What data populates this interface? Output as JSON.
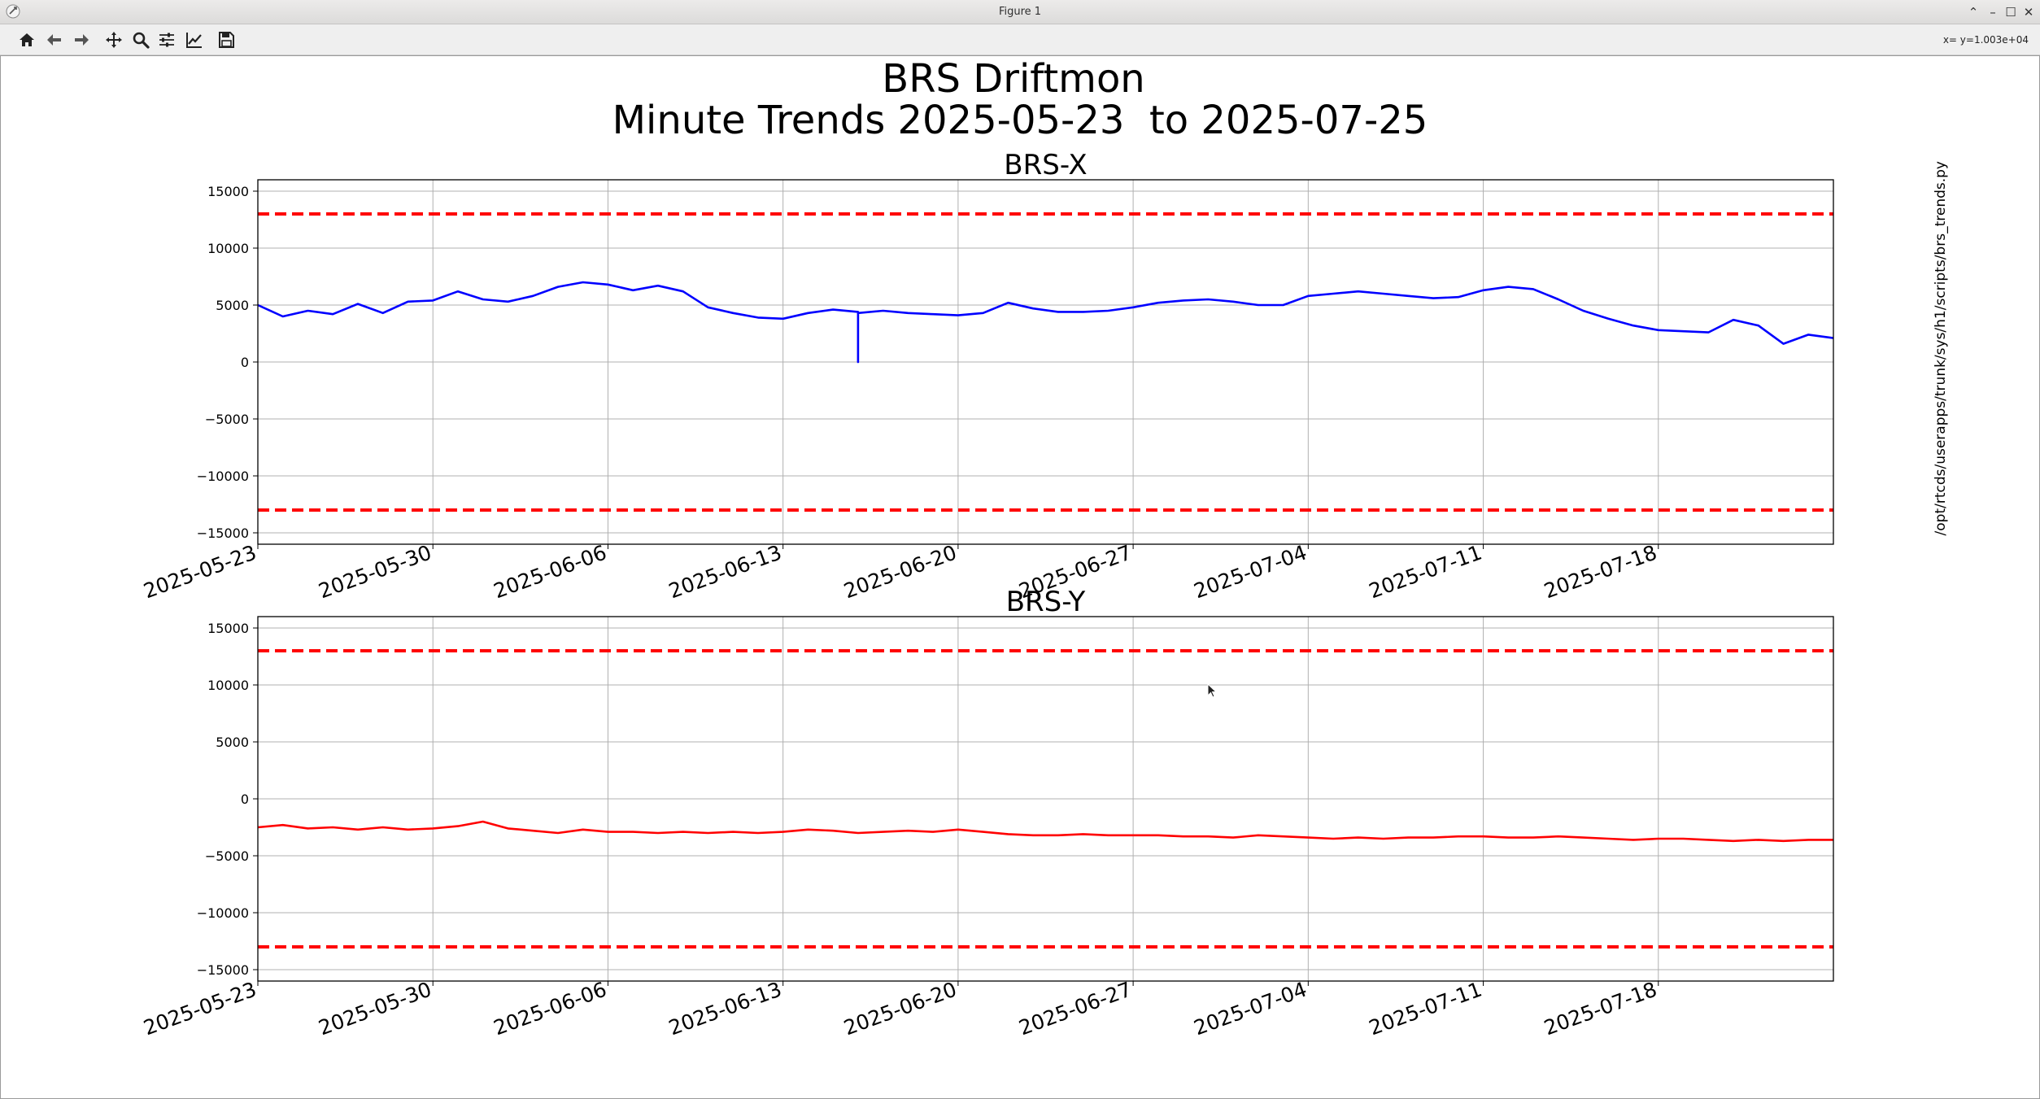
{
  "window": {
    "title": "Figure 1",
    "controls": [
      "⌃",
      "–",
      "☐",
      "✕"
    ]
  },
  "toolbar": {
    "buttons": [
      {
        "name": "home-icon"
      },
      {
        "name": "back-arrow-icon"
      },
      {
        "name": "forward-arrow-icon"
      },
      {
        "name": "pan-icon"
      },
      {
        "name": "zoom-icon"
      },
      {
        "name": "configure-subplots-icon"
      },
      {
        "name": "edit-axis-icon"
      },
      {
        "name": "save-icon"
      }
    ],
    "coord_readout": "x= y=1.003e+04"
  },
  "figure": {
    "suptitle_line1": "BRS Driftmon",
    "suptitle_line2": "Minute Trends 2025-05-23  to 2025-07-25",
    "side_label": "/opt/rtcds/userapps/trunk/sys/h1/scripts/brs_trends.py"
  },
  "colors": {
    "series_x": "#0000ff",
    "series_y": "#ff0000",
    "threshold": "#ff0000",
    "grid": "#b0b0b0"
  },
  "chart_data": [
    {
      "type": "line",
      "title": "BRS-X",
      "xlabel": "",
      "ylabel": "",
      "x_type": "date",
      "xlim": [
        "2025-05-23",
        "2025-07-25"
      ],
      "ylim": [
        -16000,
        16000
      ],
      "grid": true,
      "x_ticks": [
        "2025-05-23",
        "2025-05-30",
        "2025-06-06",
        "2025-06-13",
        "2025-06-20",
        "2025-06-27",
        "2025-07-04",
        "2025-07-11",
        "2025-07-18"
      ],
      "y_ticks": [
        15000,
        10000,
        5000,
        0,
        -5000,
        -10000,
        -15000
      ],
      "y_tick_labels": [
        "15000",
        "10000",
        "5000",
        "0",
        "−5000",
        "−10000",
        "−15000"
      ],
      "thresholds": [
        13000,
        -13000
      ],
      "series": [
        {
          "style": "solid",
          "x": [
            "2025-05-23",
            "2025-05-24",
            "2025-05-25",
            "2025-05-26",
            "2025-05-27",
            "2025-05-28",
            "2025-05-29",
            "2025-05-30",
            "2025-05-31",
            "2025-06-01",
            "2025-06-02",
            "2025-06-03",
            "2025-06-04",
            "2025-06-05",
            "2025-06-06",
            "2025-06-07",
            "2025-06-08",
            "2025-06-09",
            "2025-06-10",
            "2025-06-11",
            "2025-06-12",
            "2025-06-13",
            "2025-06-14",
            "2025-06-15",
            "2025-06-16",
            "2025-06-16",
            "2025-06-16",
            "2025-06-17",
            "2025-06-18",
            "2025-06-19",
            "2025-06-20",
            "2025-06-21",
            "2025-06-22",
            "2025-06-23",
            "2025-06-24",
            "2025-06-25",
            "2025-06-26",
            "2025-06-27",
            "2025-06-28",
            "2025-06-29",
            "2025-06-30",
            "2025-07-01",
            "2025-07-02",
            "2025-07-03",
            "2025-07-04",
            "2025-07-05",
            "2025-07-06",
            "2025-07-07",
            "2025-07-08",
            "2025-07-09",
            "2025-07-10",
            "2025-07-11",
            "2025-07-12",
            "2025-07-13",
            "2025-07-14",
            "2025-07-15",
            "2025-07-16",
            "2025-07-17",
            "2025-07-18",
            "2025-07-19",
            "2025-07-20",
            "2025-07-21",
            "2025-07-22",
            "2025-07-23",
            "2025-07-24",
            "2025-07-25"
          ],
          "values": [
            5000,
            4000,
            4500,
            4200,
            5100,
            4300,
            5300,
            5400,
            6200,
            5500,
            5300,
            5800,
            6600,
            7000,
            6800,
            6300,
            6700,
            6200,
            4800,
            4300,
            3900,
            3800,
            4300,
            4600,
            4400,
            0,
            4300,
            4500,
            4300,
            4200,
            4100,
            4300,
            5200,
            4700,
            4400,
            4400,
            4500,
            4800,
            5200,
            5400,
            5500,
            5300,
            5000,
            5000,
            5800,
            6000,
            6200,
            6000,
            5800,
            5600,
            5700,
            6300,
            6600,
            6400,
            5500,
            4500,
            3800,
            3200,
            2800,
            2700,
            2600,
            3700,
            3200,
            1600,
            2400,
            2100
          ]
        }
      ]
    },
    {
      "type": "line",
      "title": "BRS-Y",
      "xlabel": "",
      "ylabel": "",
      "x_type": "date",
      "xlim": [
        "2025-05-23",
        "2025-07-25"
      ],
      "ylim": [
        -16000,
        16000
      ],
      "grid": true,
      "x_ticks": [
        "2025-05-23",
        "2025-05-30",
        "2025-06-06",
        "2025-06-13",
        "2025-06-20",
        "2025-06-27",
        "2025-07-04",
        "2025-07-11",
        "2025-07-18"
      ],
      "y_ticks": [
        15000,
        10000,
        5000,
        0,
        -5000,
        -10000,
        -15000
      ],
      "y_tick_labels": [
        "15000",
        "10000",
        "5000",
        "0",
        "−5000",
        "−10000",
        "−15000"
      ],
      "thresholds": [
        13000,
        -13000
      ],
      "series": [
        {
          "style": "solid",
          "x": [
            "2025-05-23",
            "2025-05-24",
            "2025-05-25",
            "2025-05-26",
            "2025-05-27",
            "2025-05-28",
            "2025-05-29",
            "2025-05-30",
            "2025-05-31",
            "2025-06-01",
            "2025-06-02",
            "2025-06-03",
            "2025-06-04",
            "2025-06-05",
            "2025-06-06",
            "2025-06-07",
            "2025-06-08",
            "2025-06-09",
            "2025-06-10",
            "2025-06-11",
            "2025-06-12",
            "2025-06-13",
            "2025-06-14",
            "2025-06-15",
            "2025-06-16",
            "2025-06-17",
            "2025-06-18",
            "2025-06-19",
            "2025-06-20",
            "2025-06-21",
            "2025-06-22",
            "2025-06-23",
            "2025-06-24",
            "2025-06-25",
            "2025-06-26",
            "2025-06-27",
            "2025-06-28",
            "2025-06-29",
            "2025-06-30",
            "2025-07-01",
            "2025-07-02",
            "2025-07-03",
            "2025-07-04",
            "2025-07-05",
            "2025-07-06",
            "2025-07-07",
            "2025-07-08",
            "2025-07-09",
            "2025-07-10",
            "2025-07-11",
            "2025-07-12",
            "2025-07-13",
            "2025-07-14",
            "2025-07-15",
            "2025-07-16",
            "2025-07-17",
            "2025-07-18",
            "2025-07-19",
            "2025-07-20",
            "2025-07-21",
            "2025-07-22",
            "2025-07-23",
            "2025-07-24",
            "2025-07-25"
          ],
          "values": [
            -2500,
            -2300,
            -2600,
            -2500,
            -2700,
            -2500,
            -2700,
            -2600,
            -2400,
            -2000,
            -2600,
            -2800,
            -3000,
            -2700,
            -2900,
            -2900,
            -3000,
            -2900,
            -3000,
            -2900,
            -3000,
            -2900,
            -2700,
            -2800,
            -3000,
            -2900,
            -2800,
            -2900,
            -2700,
            -2900,
            -3100,
            -3200,
            -3200,
            -3100,
            -3200,
            -3200,
            -3200,
            -3300,
            -3300,
            -3400,
            -3200,
            -3300,
            -3400,
            -3500,
            -3400,
            -3500,
            -3400,
            -3400,
            -3300,
            -3300,
            -3400,
            -3400,
            -3300,
            -3400,
            -3500,
            -3600,
            -3500,
            -3500,
            -3600,
            -3700,
            -3600,
            -3700,
            -3600,
            -3600
          ]
        }
      ]
    }
  ]
}
